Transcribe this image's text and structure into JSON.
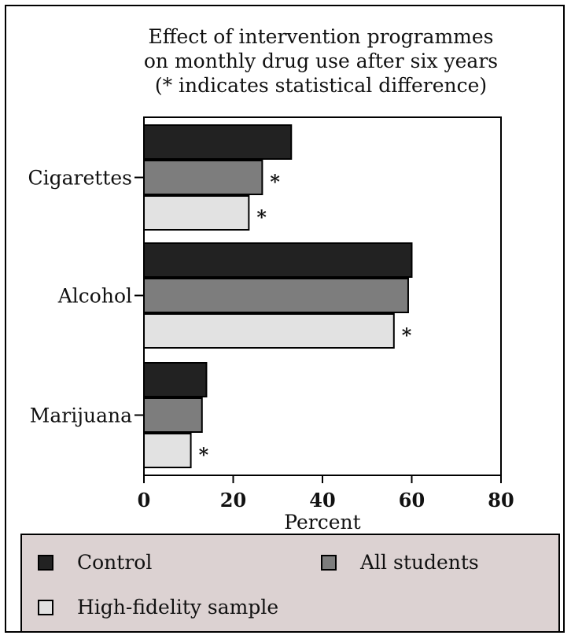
{
  "chart_data": {
    "type": "bar",
    "orientation": "horizontal",
    "title_lines": [
      "Effect of intervention programmes",
      "on monthly drug use after six years",
      "(* indicates statistical difference)"
    ],
    "xlabel": "Percent",
    "ylabel": "",
    "xlim": [
      0,
      80
    ],
    "xticks": [
      "0",
      "20",
      "40",
      "60",
      "80"
    ],
    "categories": [
      "Cigarettes",
      "Alcohol",
      "Marijuana"
    ],
    "series": [
      {
        "name": "Control",
        "color": "#222222",
        "values": [
          33,
          60,
          14
        ],
        "significant": [
          false,
          false,
          false
        ]
      },
      {
        "name": "All students",
        "color": "#7d7d7d",
        "values": [
          26.5,
          59.2,
          13
        ],
        "significant": [
          true,
          false,
          false
        ]
      },
      {
        "name": "High-fidelity sample",
        "color": "#e2e2e2",
        "values": [
          23.5,
          56,
          10.5
        ],
        "significant": [
          true,
          true,
          true
        ]
      }
    ],
    "significance_marker": "*",
    "grid": false,
    "legend_position": "bottom"
  }
}
